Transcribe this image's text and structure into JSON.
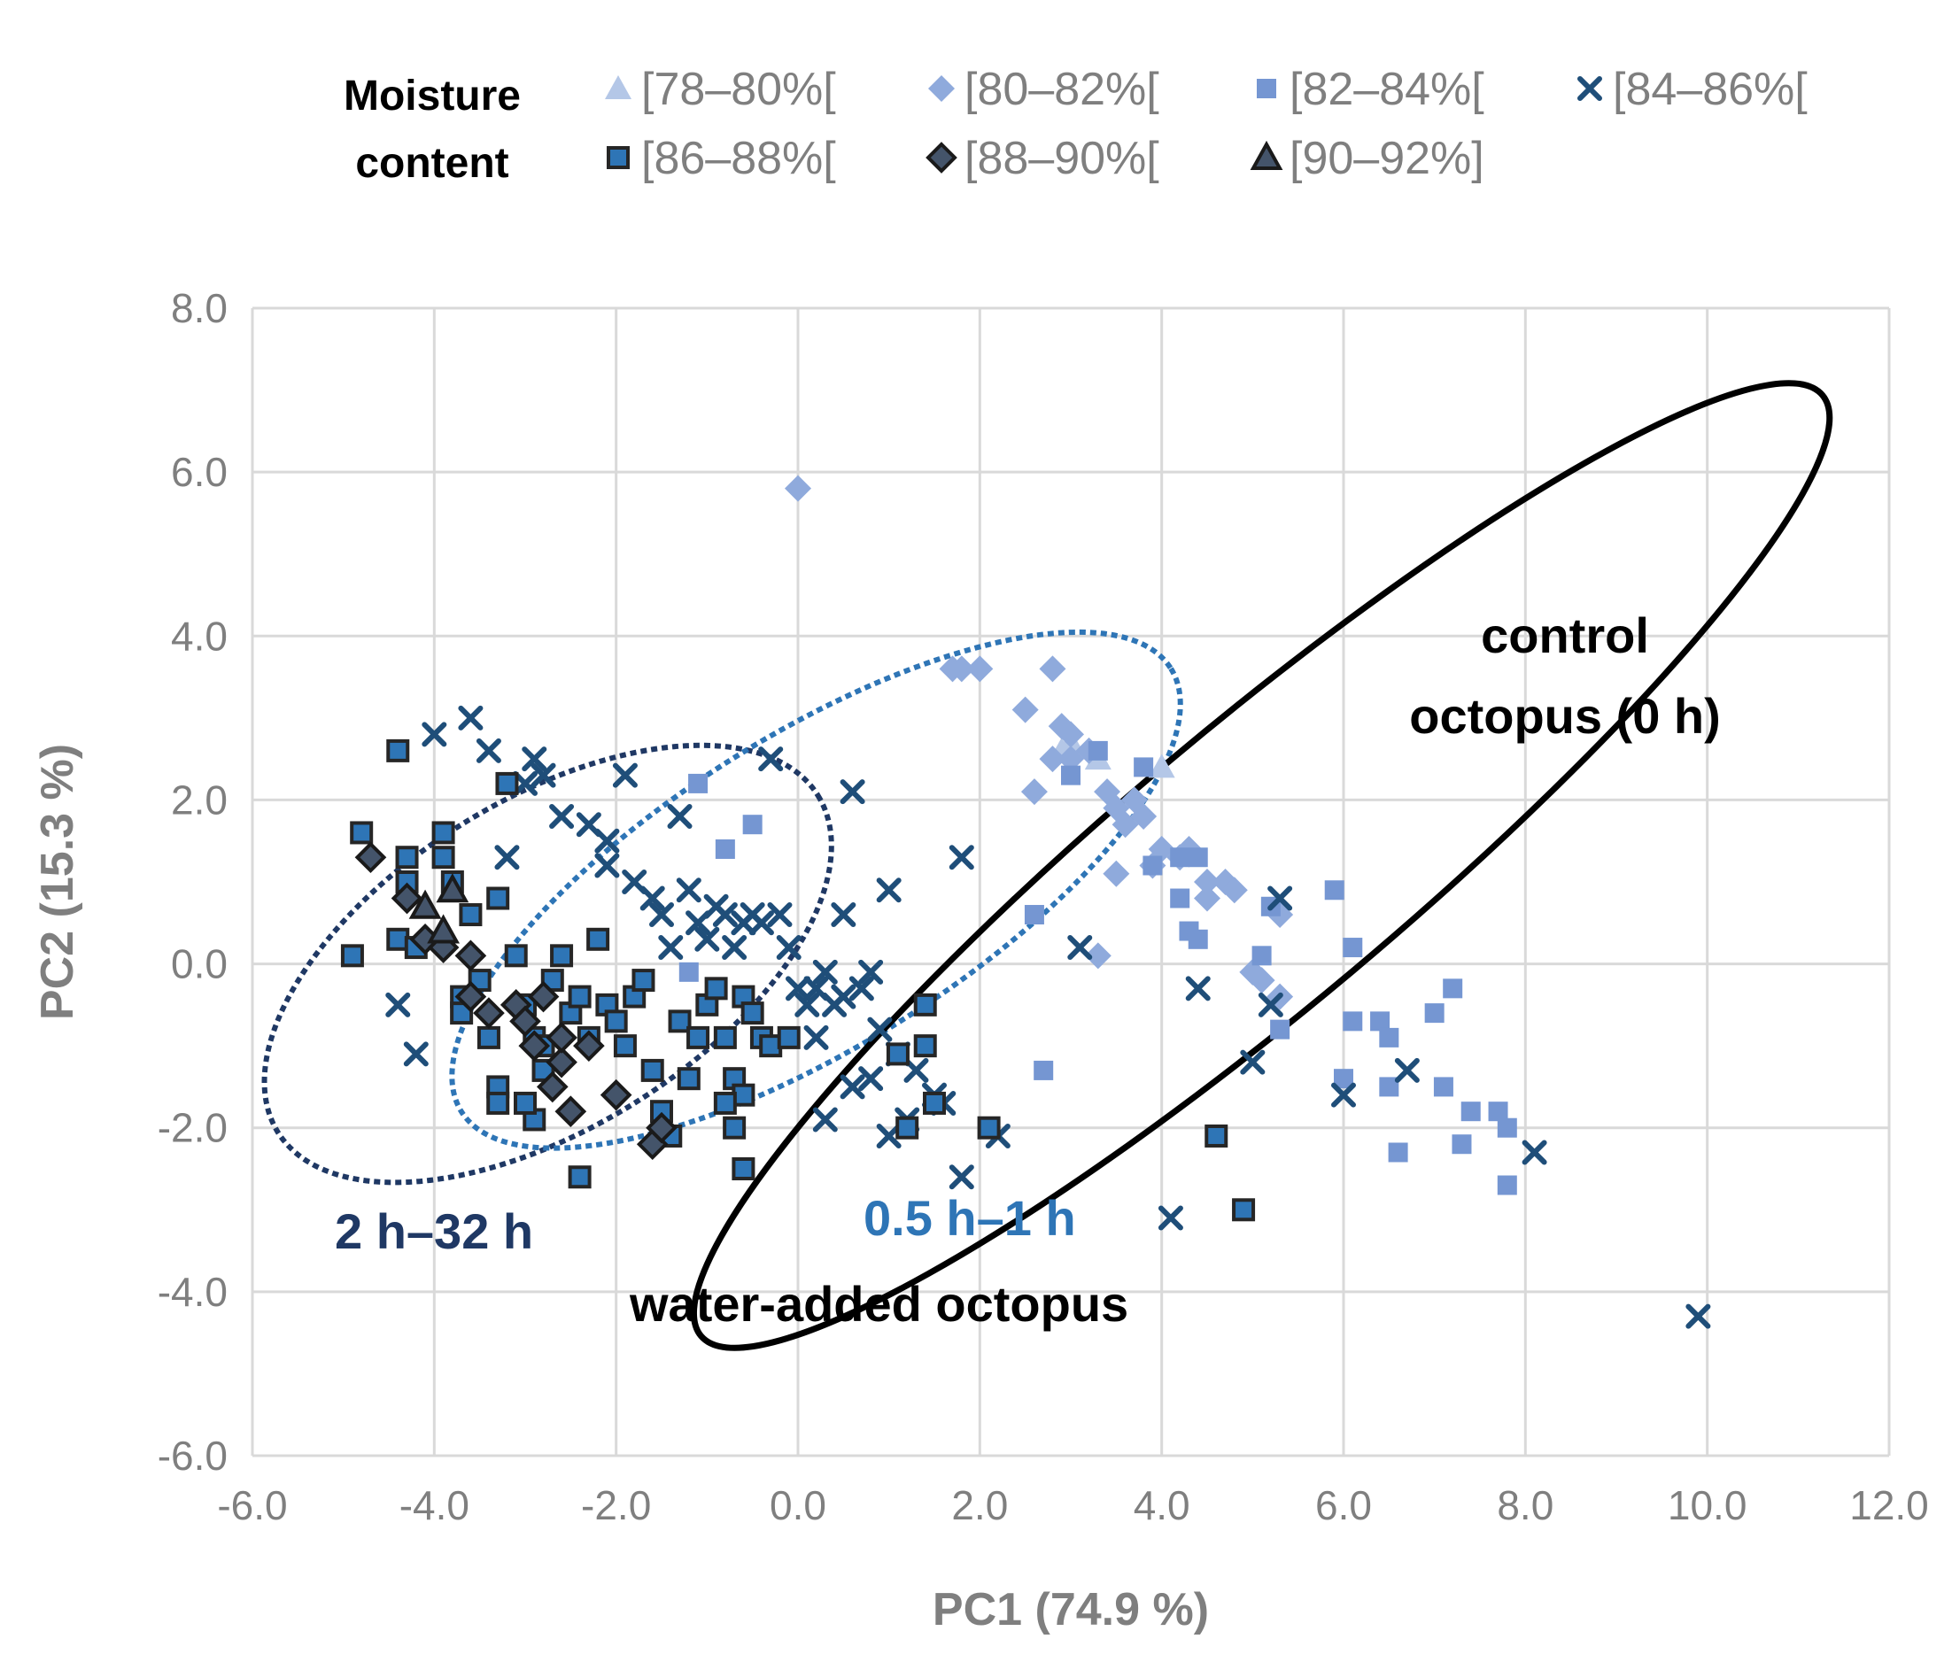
{
  "chart_data": {
    "type": "scatter",
    "xlabel": "PC1 (74.9 %)",
    "ylabel": "PC2 (15.3 %)",
    "xlim": [
      -6.0,
      12.0
    ],
    "ylim": [
      -6.0,
      8.0
    ],
    "xticks": [
      "-6.0",
      "-4.0",
      "-2.0",
      "0.0",
      "2.0",
      "4.0",
      "6.0",
      "8.0",
      "10.0",
      "12.0"
    ],
    "yticks": [
      "-6.0",
      "-4.0",
      "-2.0",
      "0.0",
      "2.0",
      "4.0",
      "6.0",
      "8.0"
    ],
    "grid": true,
    "legend": {
      "title_line1": "Moisture",
      "title_line2": "content",
      "placement": "top"
    },
    "series": [
      {
        "name": "[78–80%[",
        "marker": "triangle",
        "color": "#b4c7e7",
        "stroke": "none",
        "points": [
          [
            2.9,
            2.6
          ],
          [
            3.0,
            2.7
          ],
          [
            3.3,
            2.5
          ],
          [
            4.0,
            2.4
          ]
        ]
      },
      {
        "name": "[80–82%[",
        "marker": "diamond",
        "color": "#8faadc",
        "stroke": "none",
        "points": [
          [
            0.0,
            5.8
          ],
          [
            1.7,
            3.6
          ],
          [
            1.8,
            3.6
          ],
          [
            2.0,
            3.6
          ],
          [
            2.5,
            3.1
          ],
          [
            2.8,
            3.6
          ],
          [
            2.9,
            2.9
          ],
          [
            3.0,
            2.8
          ],
          [
            2.8,
            2.5
          ],
          [
            3.0,
            2.5
          ],
          [
            3.2,
            2.6
          ],
          [
            2.6,
            2.1
          ],
          [
            3.4,
            2.1
          ],
          [
            3.5,
            1.9
          ],
          [
            3.7,
            2.0
          ],
          [
            3.6,
            1.7
          ],
          [
            3.8,
            1.8
          ],
          [
            3.5,
            1.1
          ],
          [
            3.9,
            1.2
          ],
          [
            4.0,
            1.4
          ],
          [
            4.2,
            1.3
          ],
          [
            4.3,
            1.4
          ],
          [
            4.5,
            1.0
          ],
          [
            4.5,
            0.8
          ],
          [
            4.7,
            1.0
          ],
          [
            4.8,
            0.9
          ],
          [
            3.3,
            0.1
          ],
          [
            5.0,
            -0.1
          ],
          [
            5.3,
            0.6
          ],
          [
            5.3,
            -0.4
          ],
          [
            5.1,
            -0.2
          ]
        ]
      },
      {
        "name": "[82–84%[",
        "marker": "square",
        "color": "#7596d2",
        "stroke": "none",
        "points": [
          [
            -1.1,
            2.2
          ],
          [
            -0.5,
            1.7
          ],
          [
            -0.8,
            1.4
          ],
          [
            -1.2,
            -0.1
          ],
          [
            2.6,
            0.6
          ],
          [
            2.7,
            -1.3
          ],
          [
            3.0,
            2.3
          ],
          [
            3.3,
            2.6
          ],
          [
            3.8,
            2.4
          ],
          [
            3.9,
            1.2
          ],
          [
            4.2,
            1.3
          ],
          [
            4.4,
            1.3
          ],
          [
            4.2,
            0.8
          ],
          [
            4.3,
            0.4
          ],
          [
            4.4,
            0.3
          ],
          [
            5.2,
            0.7
          ],
          [
            5.1,
            0.1
          ],
          [
            5.3,
            -0.8
          ],
          [
            5.9,
            0.9
          ],
          [
            6.1,
            0.2
          ],
          [
            6.1,
            -0.7
          ],
          [
            6.0,
            -1.4
          ],
          [
            6.4,
            -0.7
          ],
          [
            6.5,
            -0.9
          ],
          [
            6.6,
            -2.3
          ],
          [
            6.5,
            -1.5
          ],
          [
            7.0,
            -0.6
          ],
          [
            7.2,
            -0.3
          ],
          [
            7.1,
            -1.5
          ],
          [
            7.3,
            -2.2
          ],
          [
            7.4,
            -1.8
          ],
          [
            7.7,
            -1.8
          ],
          [
            7.8,
            -2.0
          ],
          [
            7.8,
            -2.7
          ]
        ]
      },
      {
        "name": "[84–86%[",
        "marker": "cross",
        "color": "#1f4e79",
        "stroke": "none",
        "points": [
          [
            -4.4,
            -0.5
          ],
          [
            -4.2,
            -1.1
          ],
          [
            -4.0,
            2.8
          ],
          [
            -3.6,
            3.0
          ],
          [
            -3.4,
            2.6
          ],
          [
            -3.2,
            1.3
          ],
          [
            -3.0,
            2.2
          ],
          [
            -2.9,
            2.5
          ],
          [
            -2.8,
            2.3
          ],
          [
            -2.6,
            1.8
          ],
          [
            -2.3,
            1.7
          ],
          [
            -2.1,
            1.5
          ],
          [
            -2.1,
            1.2
          ],
          [
            -1.9,
            2.3
          ],
          [
            -1.8,
            1.0
          ],
          [
            -1.6,
            0.8
          ],
          [
            -1.5,
            0.6
          ],
          [
            -1.4,
            0.2
          ],
          [
            -1.3,
            1.8
          ],
          [
            -1.2,
            0.9
          ],
          [
            -1.1,
            0.5
          ],
          [
            -1.0,
            0.3
          ],
          [
            -0.9,
            0.7
          ],
          [
            -0.8,
            0.6
          ],
          [
            -0.7,
            0.2
          ],
          [
            -0.6,
            0.5
          ],
          [
            -0.5,
            0.6
          ],
          [
            -0.4,
            0.5
          ],
          [
            -0.3,
            2.5
          ],
          [
            -0.2,
            0.6
          ],
          [
            -0.1,
            0.2
          ],
          [
            0.0,
            -0.3
          ],
          [
            0.1,
            -0.5
          ],
          [
            0.2,
            -0.3
          ],
          [
            0.3,
            -0.1
          ],
          [
            0.4,
            -0.5
          ],
          [
            0.5,
            -0.4
          ],
          [
            0.6,
            2.1
          ],
          [
            0.7,
            -0.3
          ],
          [
            0.8,
            -0.1
          ],
          [
            1.0,
            0.9
          ],
          [
            0.5,
            0.6
          ],
          [
            0.9,
            -0.8
          ],
          [
            1.1,
            -1.1
          ],
          [
            1.3,
            -1.3
          ],
          [
            1.5,
            -1.6
          ],
          [
            1.6,
            -1.7
          ],
          [
            1.2,
            -1.9
          ],
          [
            1.0,
            -2.1
          ],
          [
            0.8,
            -1.4
          ],
          [
            0.6,
            -1.5
          ],
          [
            0.3,
            -1.9
          ],
          [
            0.2,
            -0.9
          ],
          [
            1.8,
            1.3
          ],
          [
            1.8,
            -2.6
          ],
          [
            2.2,
            -2.1
          ],
          [
            3.1,
            0.2
          ],
          [
            4.4,
            -0.3
          ],
          [
            5.3,
            0.8
          ],
          [
            5.2,
            -0.5
          ],
          [
            5.0,
            -1.2
          ],
          [
            6.0,
            -1.6
          ],
          [
            6.7,
            -1.3
          ],
          [
            8.1,
            -2.3
          ],
          [
            9.9,
            -4.3
          ],
          [
            4.1,
            -3.1
          ]
        ]
      },
      {
        "name": "[86–88%[",
        "marker": "square",
        "color": "#2e75b6",
        "stroke": "#262626",
        "points": [
          [
            -4.8,
            1.6
          ],
          [
            -4.9,
            0.1
          ],
          [
            -4.4,
            2.6
          ],
          [
            -4.3,
            1.3
          ],
          [
            -4.3,
            1.0
          ],
          [
            -4.4,
            0.3
          ],
          [
            -4.2,
            0.2
          ],
          [
            -3.9,
            1.6
          ],
          [
            -3.9,
            1.3
          ],
          [
            -3.8,
            1.0
          ],
          [
            -3.6,
            0.6
          ],
          [
            -3.3,
            0.8
          ],
          [
            -3.2,
            2.2
          ],
          [
            -3.7,
            -0.4
          ],
          [
            -3.7,
            -0.6
          ],
          [
            -3.5,
            -0.2
          ],
          [
            -3.4,
            -0.9
          ],
          [
            -3.3,
            -1.5
          ],
          [
            -3.3,
            -1.7
          ],
          [
            -3.1,
            0.1
          ],
          [
            -3.0,
            -0.5
          ],
          [
            -2.9,
            -0.9
          ],
          [
            -2.8,
            -1.0
          ],
          [
            -2.8,
            -1.3
          ],
          [
            -2.7,
            -0.2
          ],
          [
            -2.6,
            0.1
          ],
          [
            -2.5,
            -0.6
          ],
          [
            -2.4,
            -0.4
          ],
          [
            -2.3,
            -0.9
          ],
          [
            -2.2,
            0.3
          ],
          [
            -2.1,
            -0.5
          ],
          [
            -2.0,
            -0.7
          ],
          [
            -1.9,
            -1.0
          ],
          [
            -1.8,
            -0.4
          ],
          [
            -1.7,
            -0.2
          ],
          [
            -1.6,
            -1.3
          ],
          [
            -1.5,
            -1.8
          ],
          [
            -1.4,
            -2.1
          ],
          [
            -1.3,
            -0.7
          ],
          [
            -1.2,
            -1.4
          ],
          [
            -1.1,
            -0.9
          ],
          [
            -1.0,
            -0.5
          ],
          [
            -0.9,
            -0.3
          ],
          [
            -0.8,
            -0.9
          ],
          [
            -0.7,
            -1.4
          ],
          [
            -0.6,
            -1.6
          ],
          [
            -0.6,
            -0.4
          ],
          [
            -0.5,
            -0.6
          ],
          [
            -0.4,
            -0.9
          ],
          [
            -0.3,
            -1.0
          ],
          [
            -0.1,
            -0.9
          ],
          [
            -2.9,
            -1.9
          ],
          [
            -3.0,
            -1.7
          ],
          [
            -2.4,
            -2.6
          ],
          [
            -0.8,
            -1.7
          ],
          [
            -0.7,
            -2.0
          ],
          [
            -0.6,
            -2.5
          ],
          [
            1.1,
            -1.1
          ],
          [
            1.4,
            -1.0
          ],
          [
            1.4,
            -0.5
          ],
          [
            1.5,
            -1.7
          ],
          [
            1.2,
            -2.0
          ],
          [
            2.1,
            -2.0
          ],
          [
            4.6,
            -2.1
          ],
          [
            4.9,
            -3.0
          ]
        ]
      },
      {
        "name": "[88–90%[",
        "marker": "diamond",
        "color": "#44546a",
        "stroke": "#1a1a1a",
        "points": [
          [
            -4.7,
            1.3
          ],
          [
            -4.3,
            0.8
          ],
          [
            -4.1,
            0.3
          ],
          [
            -3.9,
            0.2
          ],
          [
            -3.6,
            0.1
          ],
          [
            -3.6,
            -0.4
          ],
          [
            -3.4,
            -0.6
          ],
          [
            -3.1,
            -0.5
          ],
          [
            -3.0,
            -0.7
          ],
          [
            -2.9,
            -1.0
          ],
          [
            -2.8,
            -0.4
          ],
          [
            -2.7,
            -1.5
          ],
          [
            -2.6,
            -1.2
          ],
          [
            -2.5,
            -1.8
          ],
          [
            -2.3,
            -1.0
          ],
          [
            -2.6,
            -0.9
          ],
          [
            -1.6,
            -2.2
          ],
          [
            -1.5,
            -2.0
          ],
          [
            -2.0,
            -1.6
          ]
        ]
      },
      {
        "name": "[90–92%]",
        "marker": "triangle",
        "color": "#44546a",
        "stroke": "#1a1a1a",
        "points": [
          [
            -4.1,
            0.7
          ],
          [
            -3.8,
            0.9
          ],
          [
            -3.9,
            0.4
          ]
        ]
      }
    ],
    "groups": [
      {
        "label": "2 h–32 h",
        "color": "#1f3864",
        "style": "dotted",
        "cx": -2.75,
        "cy": 0.0,
        "rx": 3.5,
        "ry": 2.0,
        "angle_deg": 32
      },
      {
        "label": "0.5 h–1 h",
        "color": "#2e75b6",
        "style": "dotted",
        "cx": 0.2,
        "cy": 0.9,
        "rx": 4.6,
        "ry": 1.9,
        "angle_deg": 32
      },
      {
        "label_line1": "control",
        "label_line2": "octopus (0 h)",
        "color": "#000000",
        "style": "solid",
        "cx": 5.1,
        "cy": 1.2,
        "rx": 8.05,
        "ry": 1.7,
        "angle_deg": 40
      }
    ],
    "annotations": {
      "long_label": "2 h–32 h",
      "short_label": "0.5 h–1 h",
      "water_added": "water-added octopus",
      "control_line1": "control",
      "control_line2": "octopus (0 h)"
    }
  }
}
